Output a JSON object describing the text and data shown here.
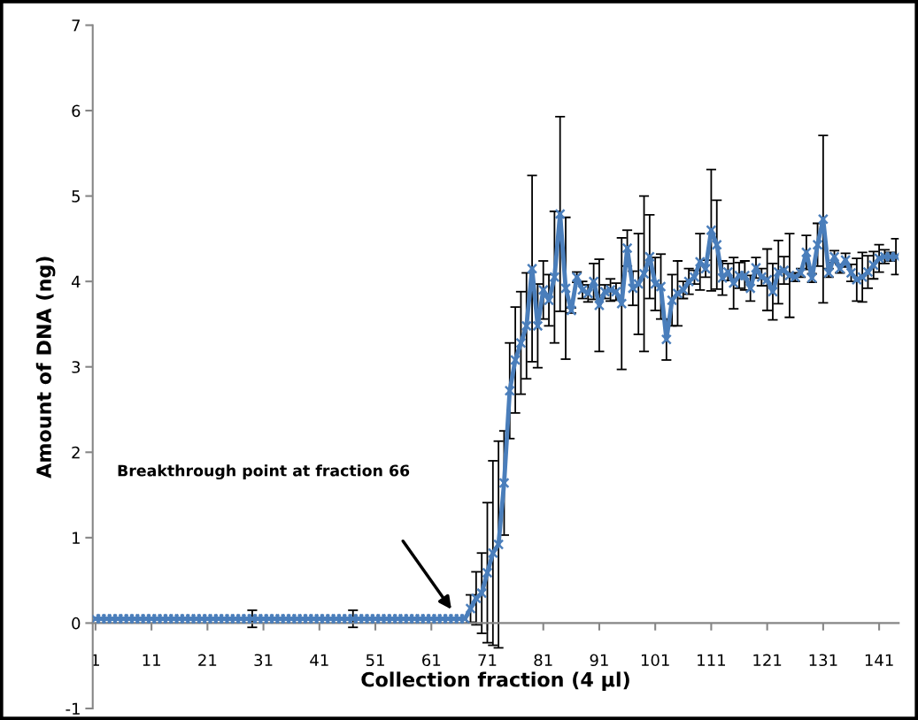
{
  "chart_data": {
    "type": "line",
    "xlabel": "Collection fraction (4 µl)",
    "ylabel": "Amount of DNA (ng)",
    "categories": [
      "1",
      null,
      null,
      null,
      null,
      null,
      null,
      null,
      null,
      null,
      "11",
      null,
      null,
      null,
      null,
      null,
      null,
      null,
      null,
      null,
      "21",
      null,
      null,
      null,
      null,
      null,
      null,
      null,
      null,
      null,
      "31",
      null,
      null,
      null,
      null,
      null,
      null,
      null,
      null,
      null,
      "41",
      null,
      null,
      null,
      null,
      null,
      null,
      null,
      null,
      null,
      "51",
      null,
      null,
      null,
      null,
      null,
      null,
      null,
      null,
      null,
      "61",
      null,
      null,
      null,
      null,
      null,
      null,
      null,
      null,
      null,
      "71",
      null,
      null,
      null,
      null,
      null,
      null,
      null,
      null,
      null,
      "81",
      null,
      null,
      null,
      null,
      null,
      null,
      null,
      null,
      null,
      "91",
      null,
      null,
      null,
      null,
      null,
      null,
      null,
      null,
      null,
      "101",
      null,
      null,
      null,
      null,
      null,
      null,
      null,
      null,
      null,
      "111",
      null,
      null,
      null,
      null,
      null,
      null,
      null,
      null,
      null,
      "121",
      null,
      null,
      null,
      null,
      null,
      null,
      null,
      null,
      null,
      "131",
      null,
      null,
      null,
      null,
      null,
      null,
      null,
      null,
      null,
      "141",
      null,
      null,
      null
    ],
    "series": [
      {
        "color": "#4a7ebb",
        "values": [
          0.05,
          0.05,
          0.05,
          0.05,
          0.05,
          0.05,
          0.05,
          0.05,
          0.05,
          0.05,
          0.05,
          0.05,
          0.05,
          0.05,
          0.05,
          0.05,
          0.05,
          0.05,
          0.05,
          0.05,
          0.05,
          0.05,
          0.05,
          0.05,
          0.05,
          0.05,
          0.05,
          0.05,
          0.05,
          0.05,
          0.05,
          0.05,
          0.05,
          0.05,
          0.05,
          0.05,
          0.05,
          0.05,
          0.05,
          0.05,
          0.05,
          0.05,
          0.05,
          0.05,
          0.05,
          0.05,
          0.05,
          0.05,
          0.05,
          0.05,
          0.05,
          0.05,
          0.05,
          0.05,
          0.05,
          0.05,
          0.05,
          0.05,
          0.05,
          0.05,
          0.05,
          0.05,
          0.05,
          0.05,
          0.05,
          0.05,
          0.05,
          0.17,
          0.29,
          0.35,
          0.59,
          0.82,
          0.92,
          1.64,
          2.72,
          3.08,
          3.28,
          3.48,
          4.15,
          3.48,
          3.9,
          3.78,
          4.05,
          4.79,
          3.92,
          3.66,
          4.05,
          3.9,
          3.86,
          4.0,
          3.72,
          3.88,
          3.9,
          3.88,
          3.74,
          4.39,
          3.92,
          3.97,
          4.09,
          4.29,
          3.97,
          3.94,
          3.32,
          3.78,
          3.86,
          3.9,
          4.0,
          4.05,
          4.23,
          4.15,
          4.6,
          4.43,
          4.04,
          4.11,
          3.98,
          4.07,
          4.07,
          3.92,
          4.16,
          4.05,
          4.02,
          3.88,
          4.11,
          4.13,
          4.07,
          4.05,
          4.1,
          4.34,
          4.04,
          4.43,
          4.73,
          4.1,
          4.29,
          4.15,
          4.25,
          4.1,
          4.02,
          4.05,
          4.11,
          4.19,
          4.27,
          4.29,
          4.29,
          4.29
        ],
        "errors": [
          null,
          null,
          null,
          null,
          null,
          null,
          null,
          null,
          null,
          null,
          null,
          null,
          null,
          null,
          null,
          null,
          null,
          null,
          null,
          null,
          null,
          null,
          null,
          null,
          null,
          null,
          null,
          null,
          0.1,
          null,
          null,
          null,
          null,
          null,
          null,
          null,
          null,
          null,
          null,
          null,
          null,
          null,
          null,
          null,
          null,
          null,
          0.1,
          null,
          null,
          null,
          null,
          null,
          null,
          null,
          null,
          null,
          null,
          null,
          null,
          null,
          null,
          null,
          null,
          null,
          null,
          null,
          null,
          0.16,
          0.31,
          0.47,
          0.82,
          1.08,
          1.21,
          0.61,
          0.56,
          0.62,
          0.6,
          0.62,
          1.09,
          0.49,
          0.34,
          0.3,
          0.77,
          1.14,
          0.83,
          0.03,
          0.06,
          0.1,
          0.1,
          0.21,
          0.54,
          0.08,
          0.13,
          0.1,
          0.77,
          0.21,
          0.2,
          0.59,
          0.91,
          0.49,
          0.31,
          0.38,
          0.24,
          0.3,
          0.38,
          0.1,
          0.15,
          0.08,
          0.33,
          0.1,
          0.71,
          0.52,
          0.2,
          0.1,
          0.3,
          0.15,
          0.17,
          0.15,
          0.12,
          0.1,
          0.36,
          0.33,
          0.37,
          0.16,
          0.49,
          0.05,
          0.05,
          0.2,
          0.05,
          0.25,
          0.98,
          0.05,
          0.07,
          0.05,
          0.08,
          0.1,
          0.25,
          0.29,
          0.19,
          0.16,
          0.16,
          0.08,
          0.05,
          0.21
        ]
      }
    ],
    "marker": "cross",
    "line_style": "solid",
    "ylim": [
      -1,
      7
    ],
    "yticks": [
      -1,
      0,
      1,
      2,
      3,
      4,
      5,
      6,
      7
    ],
    "annotations": [
      "Breakthrough point at fraction 66"
    ]
  }
}
